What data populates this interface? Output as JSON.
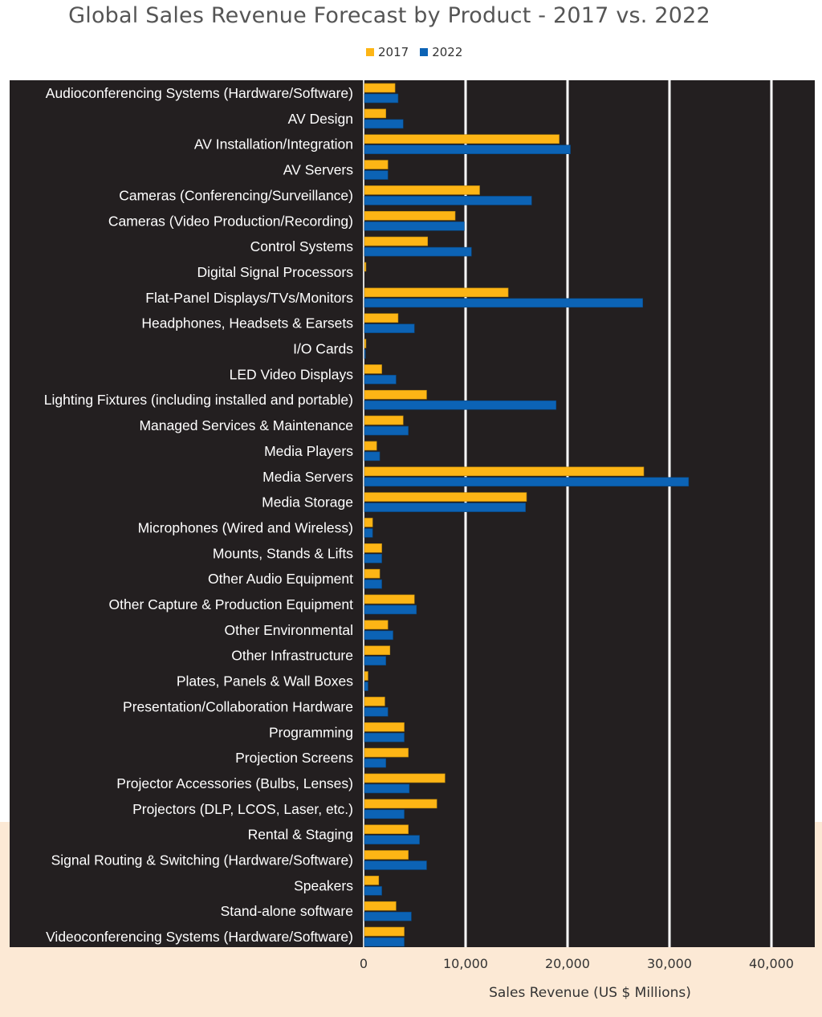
{
  "chart_data": {
    "type": "bar",
    "orientation": "horizontal",
    "title": "Global Sales Revenue Forecast by Product - 2017 vs. 2022",
    "xlabel": "Sales Revenue (US $ Millions)",
    "ylabel": "",
    "xlim": [
      0,
      44000
    ],
    "xticks": [
      0,
      10000,
      20000,
      30000,
      40000
    ],
    "xtick_labels": [
      "0",
      "10,000",
      "20,000",
      "30,000",
      "40,000"
    ],
    "grid": true,
    "legend_position": "top",
    "categories": [
      "Audioconferencing Systems (Hardware/Software)",
      "AV Design",
      "AV Installation/Integration",
      "AV Servers",
      "Cameras (Conferencing/Surveillance)",
      "Cameras (Video Production/Recording)",
      "Control Systems",
      "Digital Signal Processors",
      "Flat-Panel Displays/TVs/Monitors",
      "Headphones, Headsets & Earsets",
      "I/O Cards",
      "LED Video Displays",
      "Lighting Fixtures (including installed and portable)",
      "Managed Services & Maintenance",
      "Media Players",
      "Media Servers",
      "Media Storage",
      "Microphones (Wired and Wireless)",
      "Mounts, Stands & Lifts",
      "Other Audio Equipment",
      "Other Capture & Production Equipment",
      "Other Environmental",
      "Other Infrastructure",
      "Plates, Panels & Wall Boxes",
      "Presentation/Collaboration Hardware",
      "Programming",
      "Projection Screens",
      "Projector Accessories (Bulbs, Lenses)",
      "Projectors (DLP, LCOS, Laser, etc.)",
      "Rental & Staging",
      "Signal Routing & Switching (Hardware/Software)",
      "Speakers",
      "Stand-alone software",
      "Videoconferencing Systems (Hardware/Software)"
    ],
    "series": [
      {
        "name": "2017",
        "color": "#fdb515",
        "values": [
          3000,
          2100,
          19100,
          2300,
          11300,
          8900,
          6200,
          150,
          14100,
          3300,
          150,
          1700,
          6100,
          3800,
          1200,
          27400,
          15900,
          800,
          1700,
          1500,
          4900,
          2300,
          2500,
          350,
          2000,
          3900,
          4300,
          7900,
          7100,
          4300,
          4300,
          1400,
          3100,
          3900
        ]
      },
      {
        "name": "2022",
        "color": "#0c63b5",
        "values": [
          3300,
          3800,
          20200,
          2300,
          16400,
          9800,
          10500,
          0,
          27300,
          4900,
          100,
          3100,
          18800,
          4300,
          1500,
          31800,
          15800,
          800,
          1700,
          1700,
          5100,
          2800,
          2100,
          350,
          2300,
          3900,
          2100,
          4400,
          3900,
          5400,
          6100,
          1700,
          4600,
          3900
        ]
      }
    ]
  }
}
